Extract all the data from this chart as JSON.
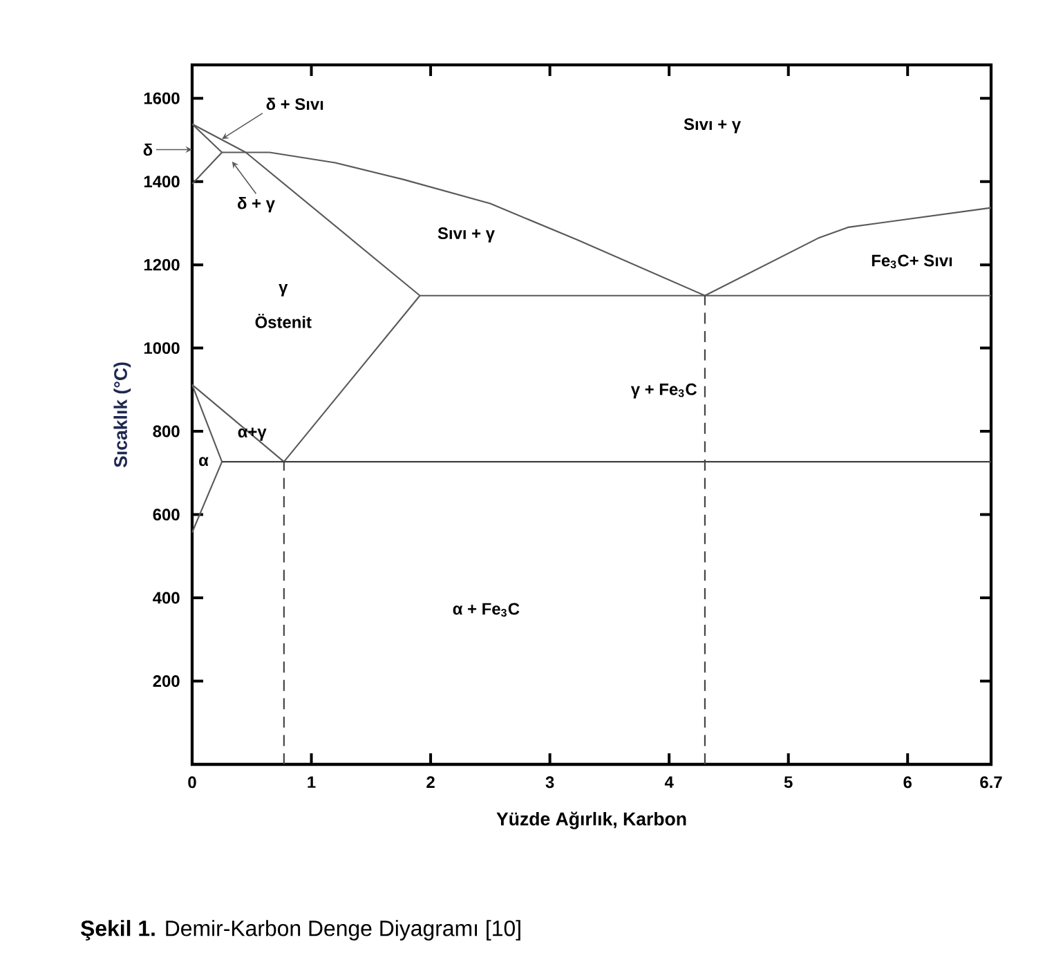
{
  "chart_data": {
    "type": "line",
    "xlabel": "Yüzde Ağırlık, Karbon",
    "ylabel": "Sıcaklık (°C)",
    "xlim": [
      0,
      6.7
    ],
    "ylim": [
      0,
      1680
    ],
    "xticks": [
      0,
      1,
      2,
      3,
      4,
      5,
      6,
      6.7
    ],
    "yticks": [
      200,
      400,
      600,
      800,
      1000,
      1200,
      1400,
      1600
    ],
    "grid": false,
    "marker": "none",
    "series": [
      {
        "color": "#595959",
        "x": [
          0,
          0.45,
          0.65,
          1.2,
          1.77,
          2.5,
          3.23,
          4.3
        ],
        "values": [
          1538,
          1470,
          1470,
          1445,
          1405,
          1347,
          1260,
          1126
        ]
      },
      {
        "color": "#595959",
        "x": [
          0,
          0.25,
          0
        ],
        "values": [
          1538,
          1470,
          1394
        ]
      },
      {
        "color": "#595959",
        "x": [
          0.25,
          0.45
        ],
        "values": [
          1470,
          1470
        ]
      },
      {
        "color": "#595959",
        "x": [
          0.45,
          1.91
        ],
        "values": [
          1470,
          1126
        ]
      },
      {
        "color": "#595959",
        "x": [
          1.91,
          6.7
        ],
        "values": [
          1126,
          1126
        ]
      },
      {
        "color": "#595959",
        "x": [
          4.3,
          5.25,
          5.5,
          6.7
        ],
        "values": [
          1126,
          1264,
          1290,
          1337
        ]
      },
      {
        "color": "#595959",
        "x": [
          0.77,
          1.91
        ],
        "values": [
          727,
          1126
        ]
      },
      {
        "color": "#595959",
        "x": [
          0,
          0.77
        ],
        "values": [
          912,
          727
        ]
      },
      {
        "color": "#595959",
        "x": [
          0,
          0.25,
          0
        ],
        "values": [
          912,
          727,
          557
        ]
      },
      {
        "color": "#404040",
        "x": [
          0.25,
          6.7
        ],
        "values": [
          727,
          727
        ]
      },
      {
        "color": "#404040",
        "line_style": "dashed",
        "x": [
          0.77,
          0.77
        ],
        "values": [
          0,
          727
        ]
      },
      {
        "color": "#404040",
        "line_style": "dashed",
        "x": [
          4.3,
          4.3
        ],
        "values": [
          0,
          1126
        ]
      }
    ],
    "annotations": [
      "Sıvı + γ",
      "Sıvı + γ",
      "Fe$_{3}$C+ Sıvı",
      "γ",
      "Östenit",
      "γ + Fe$_{3}$C",
      "α+γ",
      "α",
      "α + Fe$_{3}$C",
      {
        "text": "δ + Sıvı",
        "x": 0.25,
        "y": 1502
      },
      "δ + γ",
      "δ",
      "**Şekil 1.** Demir-Karbon Denge Diyagramı [10]"
    ]
  }
}
